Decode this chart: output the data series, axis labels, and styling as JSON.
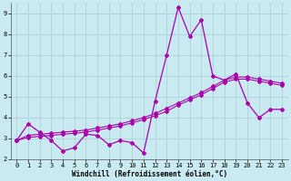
{
  "xlabel": "Windchill (Refroidissement éolien,°C)",
  "background_color": "#c8eaf0",
  "grid_color": "#a8ccd8",
  "line_color": "#aa00aa",
  "x_values": [
    0,
    1,
    2,
    3,
    4,
    5,
    6,
    7,
    8,
    9,
    10,
    11,
    12,
    13,
    14,
    15,
    16,
    17,
    18,
    19,
    20,
    21,
    22,
    23
  ],
  "y_line1": [
    2.9,
    3.7,
    3.3,
    2.9,
    2.4,
    2.55,
    3.2,
    3.15,
    2.7,
    2.9,
    2.8,
    2.3,
    4.8,
    7.0,
    9.3,
    7.9,
    8.7,
    6.0,
    5.8,
    6.1,
    4.7,
    4.0,
    4.4,
    4.4
  ],
  "y_line2": [
    2.9,
    3.05,
    3.1,
    3.15,
    3.2,
    3.25,
    3.3,
    3.4,
    3.5,
    3.6,
    3.75,
    3.9,
    4.1,
    4.3,
    4.6,
    4.85,
    5.1,
    5.4,
    5.7,
    5.85,
    5.85,
    5.75,
    5.65,
    5.55
  ],
  "y_line3": [
    2.9,
    3.15,
    3.2,
    3.25,
    3.3,
    3.35,
    3.4,
    3.5,
    3.6,
    3.7,
    3.85,
    4.0,
    4.2,
    4.45,
    4.7,
    4.95,
    5.2,
    5.5,
    5.8,
    5.95,
    5.95,
    5.85,
    5.75,
    5.65
  ],
  "ylim": [
    2,
    9.5
  ],
  "xlim": [
    -0.5,
    23.5
  ],
  "yticks": [
    2,
    3,
    4,
    5,
    6,
    7,
    8,
    9
  ],
  "xticks": [
    0,
    1,
    2,
    3,
    4,
    5,
    6,
    7,
    8,
    9,
    10,
    11,
    12,
    13,
    14,
    15,
    16,
    17,
    18,
    19,
    20,
    21,
    22,
    23
  ],
  "tick_fontsize": 5.0,
  "label_fontsize": 5.5
}
